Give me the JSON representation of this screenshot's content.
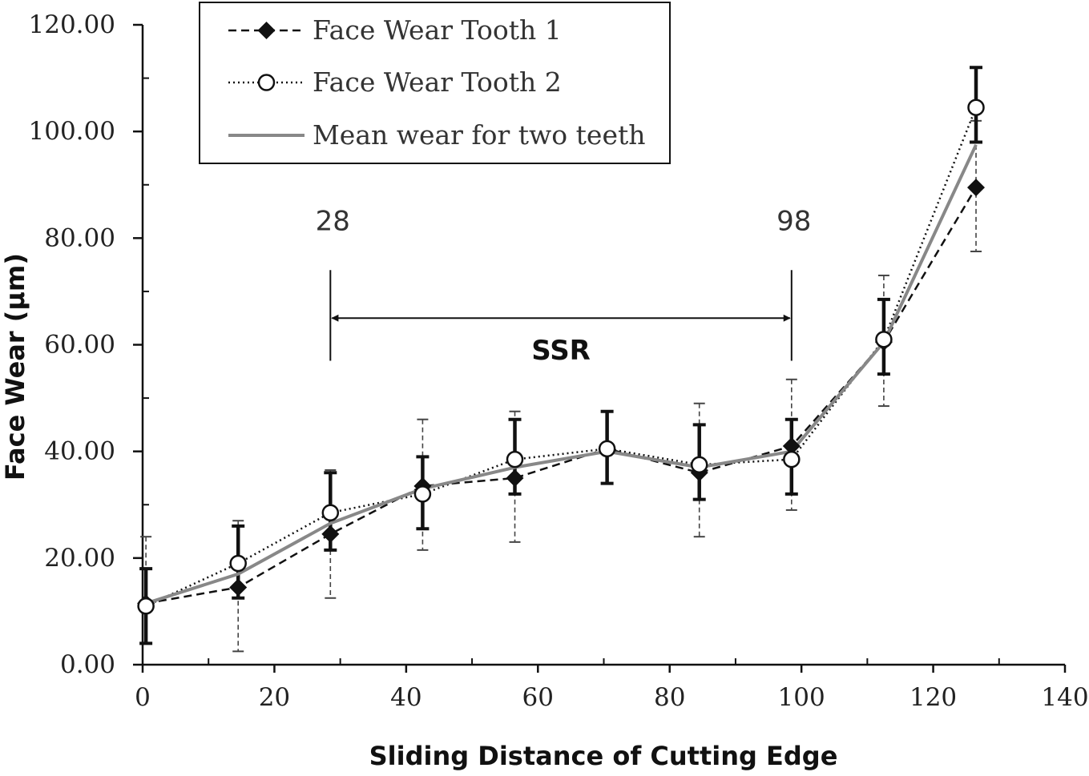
{
  "chart_data": {
    "type": "line",
    "xlabel": "Sliding Distance of Cutting Edge",
    "ylabel": "Face Wear (μm)",
    "xlim": [
      0,
      140
    ],
    "ylim": [
      0,
      120
    ],
    "xticks": [
      0,
      20,
      40,
      60,
      80,
      100,
      120,
      140
    ],
    "xtick_labels": [
      "0",
      "20",
      "40",
      "60",
      "80",
      "100",
      "120",
      "140"
    ],
    "yticks": [
      0,
      20,
      40,
      60,
      80,
      100,
      120
    ],
    "ytick_labels": [
      "0.00",
      "20.00",
      "40.00",
      "60.00",
      "80.00",
      "100.00",
      "120.00"
    ],
    "grid": false,
    "legend_position": "top-left",
    "series": [
      {
        "name": "Face Wear Tooth 1",
        "line_style": "dashed",
        "marker": "filled-diamond",
        "color": "#111111",
        "points": [
          {
            "x": 0.5,
            "y": 11.5,
            "err_low": 0,
            "err_high": 12.5
          },
          {
            "x": 14.5,
            "y": 14.5,
            "err_low": 12,
            "err_high": 12.5
          },
          {
            "x": 28.5,
            "y": 24.5,
            "err_low": 12,
            "err_high": 12
          },
          {
            "x": 42.5,
            "y": 33.5,
            "err_low": 12,
            "err_high": 12.5
          },
          {
            "x": 56.5,
            "y": 35,
            "err_low": 12,
            "err_high": 12.5
          },
          {
            "x": 70.5,
            "y": 40.5,
            "err_low": 0,
            "err_high": 0
          },
          {
            "x": 84.5,
            "y": 36,
            "err_low": 12,
            "err_high": 13
          },
          {
            "x": 98.5,
            "y": 41,
            "err_low": 12,
            "err_high": 12.5
          },
          {
            "x": 112.5,
            "y": 60.5,
            "err_low": 12,
            "err_high": 12.5
          },
          {
            "x": 126.5,
            "y": 89.5,
            "err_low": 12,
            "err_high": 12.5
          }
        ]
      },
      {
        "name": "Face Wear Tooth 2",
        "line_style": "dotted",
        "marker": "open-circle",
        "color": "#111111",
        "points": [
          {
            "x": 0.5,
            "y": 11,
            "err_low": 7,
            "err_high": 7
          },
          {
            "x": 14.5,
            "y": 19,
            "err_low": 6.5,
            "err_high": 7
          },
          {
            "x": 28.5,
            "y": 28.5,
            "err_low": 7,
            "err_high": 7.5
          },
          {
            "x": 42.5,
            "y": 32,
            "err_low": 6.5,
            "err_high": 7
          },
          {
            "x": 56.5,
            "y": 38.5,
            "err_low": 6.5,
            "err_high": 7.5
          },
          {
            "x": 70.5,
            "y": 40.5,
            "err_low": 6.5,
            "err_high": 7
          },
          {
            "x": 84.5,
            "y": 37.5,
            "err_low": 6.5,
            "err_high": 7.5
          },
          {
            "x": 98.5,
            "y": 38.5,
            "err_low": 6.5,
            "err_high": 7.5
          },
          {
            "x": 112.5,
            "y": 61,
            "err_low": 6.5,
            "err_high": 7.5
          },
          {
            "x": 126.5,
            "y": 104.5,
            "err_low": 6.5,
            "err_high": 7.5
          }
        ]
      },
      {
        "name": "Mean wear for two teeth",
        "line_style": "solid",
        "marker": "none",
        "color": "#888888",
        "x": [
          0.5,
          14.5,
          28.5,
          42.5,
          56.5,
          70.5,
          84.5,
          98.5,
          112.5,
          126.5
        ],
        "y": [
          11.5,
          17,
          26.5,
          33,
          37,
          40,
          37,
          40,
          60.5,
          97.5
        ]
      }
    ],
    "annotations": [
      {
        "type": "vline",
        "x": 28.5,
        "label": "28"
      },
      {
        "type": "vline",
        "x": 98.5,
        "label": "98"
      },
      {
        "type": "double-arrow",
        "x_from": 28.5,
        "x_to": 98.5,
        "y": 65,
        "label": "SSR"
      }
    ]
  }
}
